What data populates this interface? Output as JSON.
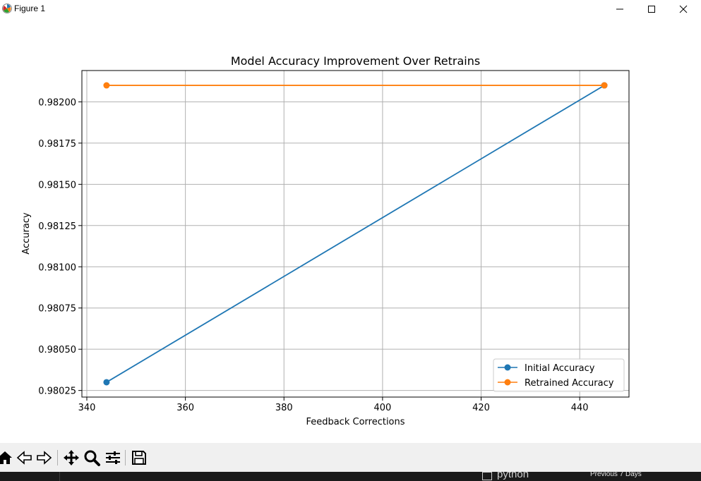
{
  "window": {
    "title": "Figure 1",
    "minimize_icon": "minimize-icon",
    "maximize_icon": "maximize-icon",
    "close_icon": "close-icon"
  },
  "chart_data": {
    "type": "line",
    "title": "Model Accuracy Improvement Over Retrains",
    "xlabel": "Feedback Corrections",
    "ylabel": "Accuracy",
    "xlim": [
      339,
      450
    ],
    "ylim": [
      0.98021,
      0.98219
    ],
    "xticks": [
      340,
      360,
      380,
      400,
      420,
      440
    ],
    "xtick_labels": [
      "340",
      "360",
      "380",
      "400",
      "420",
      "440"
    ],
    "yticks": [
      0.98025,
      0.9805,
      0.98075,
      0.981,
      0.98125,
      0.9815,
      0.98175,
      0.982
    ],
    "ytick_labels": [
      "0.98025",
      "0.98050",
      "0.98075",
      "0.98100",
      "0.98125",
      "0.98150",
      "0.98175",
      "0.98200"
    ],
    "grid": true,
    "legend_position": "lower-right",
    "series": [
      {
        "name": "Initial Accuracy",
        "color": "#1f77b4",
        "marker": "circle",
        "x": [
          344,
          445
        ],
        "y": [
          0.9803,
          0.9821
        ]
      },
      {
        "name": "Retrained Accuracy",
        "color": "#ff7f0e",
        "marker": "circle",
        "x": [
          344,
          445
        ],
        "y": [
          0.9821,
          0.9821
        ]
      }
    ]
  },
  "toolbar": {
    "items": [
      {
        "name": "home-icon"
      },
      {
        "name": "back-icon"
      },
      {
        "name": "forward-icon"
      },
      {
        "name": "pan-icon"
      },
      {
        "name": "zoom-icon"
      },
      {
        "name": "configure-subplots-icon"
      },
      {
        "name": "save-icon"
      }
    ]
  },
  "taskbar": {
    "python_label": "python",
    "history_label": "Previous 7 Days"
  }
}
